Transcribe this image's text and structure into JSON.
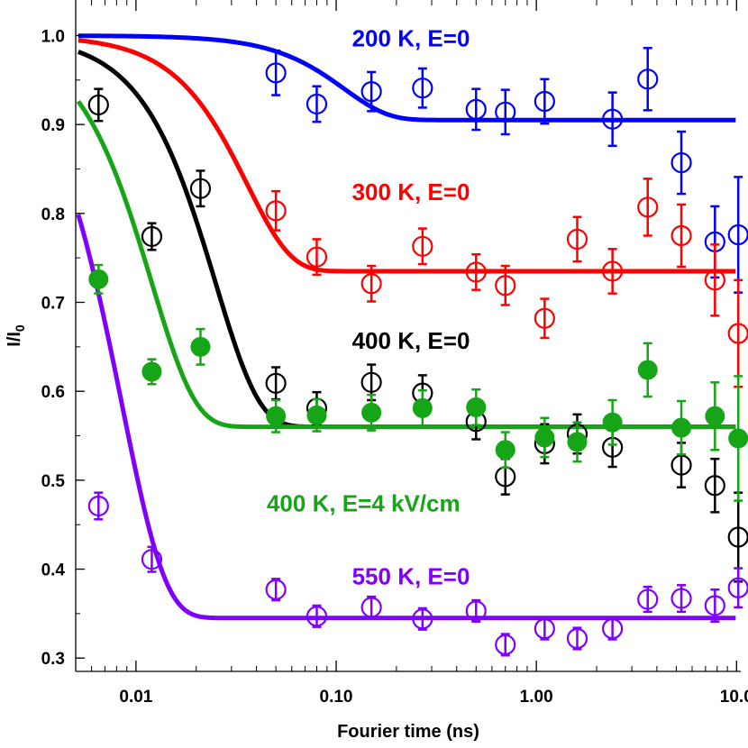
{
  "chart_data": {
    "type": "scatter",
    "xlabel": "Fourier time (ns)",
    "ylabel": "I/I",
    "ylabel_subscript": "0",
    "xscale": "log",
    "xlim": [
      0.005,
      10.5
    ],
    "ylim": [
      0.285,
      1.04
    ],
    "xticks": [
      0.01,
      0.1,
      1,
      10
    ],
    "xtick_labels": [
      "0.01",
      "0.10",
      "1.00",
      "10.0"
    ],
    "yticks": [
      0.3,
      0.4,
      0.5,
      0.6,
      0.7,
      0.8,
      0.9,
      1.0
    ],
    "ytick_labels": [
      "0.3",
      "0.4",
      "0.5",
      "0.6",
      "0.7",
      "0.8",
      "0.9",
      "1.0"
    ],
    "grid": false,
    "series": [
      {
        "name": "200 K, E=0",
        "color": "#0000ff",
        "marker": "open-circle",
        "x": [
          0.05,
          0.08,
          0.15,
          0.27,
          0.5,
          0.7,
          1.1,
          2.4,
          3.6,
          5.3,
          7.8,
          10.2
        ],
        "y": [
          0.958,
          0.923,
          0.937,
          0.941,
          0.917,
          0.914,
          0.926,
          0.906,
          0.951,
          0.857,
          0.768,
          0.776
        ],
        "yerr": [
          0.025,
          0.02,
          0.022,
          0.022,
          0.023,
          0.025,
          0.025,
          0.03,
          0.035,
          0.035,
          0.04,
          0.065
        ],
        "fit": {
          "plateau": 0.905,
          "amplitude": 0.095,
          "tau": 0.11
        }
      },
      {
        "name": "300 K, E=0",
        "color": "#ff0000",
        "marker": "open-circle",
        "x": [
          0.05,
          0.08,
          0.15,
          0.27,
          0.5,
          0.7,
          1.1,
          1.6,
          2.4,
          3.6,
          5.3,
          7.8,
          10.2
        ],
        "y": [
          0.803,
          0.751,
          0.721,
          0.763,
          0.734,
          0.719,
          0.682,
          0.771,
          0.735,
          0.807,
          0.775,
          0.725,
          0.665
        ],
        "yerr": [
          0.022,
          0.02,
          0.02,
          0.02,
          0.02,
          0.022,
          0.022,
          0.025,
          0.025,
          0.032,
          0.035,
          0.04,
          0.06
        ],
        "fit": {
          "plateau": 0.735,
          "amplitude": 0.265,
          "tau": 0.036
        }
      },
      {
        "name": "400 K, E=0",
        "color": "#000000",
        "marker": "open-circle",
        "x": [
          0.0065,
          0.012,
          0.021,
          0.05,
          0.08,
          0.15,
          0.27,
          0.5,
          0.7,
          1.1,
          1.6,
          2.4,
          5.3,
          7.8,
          10.2
        ],
        "y": [
          0.922,
          0.774,
          0.828,
          0.609,
          0.581,
          0.61,
          0.598,
          0.566,
          0.504,
          0.541,
          0.552,
          0.537,
          0.517,
          0.494,
          0.436
        ],
        "yerr": [
          0.018,
          0.015,
          0.02,
          0.018,
          0.018,
          0.02,
          0.02,
          0.02,
          0.02,
          0.022,
          0.022,
          0.022,
          0.025,
          0.03,
          0.05
        ],
        "fit": {
          "plateau": 0.56,
          "amplitude": 0.44,
          "tau": 0.025
        }
      },
      {
        "name": "400 K, E=4 kV/cm",
        "color": "#16a516",
        "marker": "filled-circle",
        "x": [
          0.0065,
          0.012,
          0.021,
          0.05,
          0.08,
          0.15,
          0.27,
          0.5,
          0.7,
          1.1,
          1.6,
          2.4,
          3.6,
          5.3,
          7.8,
          10.2
        ],
        "y": [
          0.726,
          0.622,
          0.65,
          0.572,
          0.573,
          0.576,
          0.581,
          0.582,
          0.534,
          0.548,
          0.543,
          0.565,
          0.624,
          0.559,
          0.572,
          0.547
        ],
        "yerr": [
          0.016,
          0.014,
          0.02,
          0.018,
          0.018,
          0.02,
          0.02,
          0.02,
          0.02,
          0.022,
          0.022,
          0.025,
          0.03,
          0.03,
          0.038,
          0.07
        ],
        "fit": {
          "plateau": 0.56,
          "amplitude": 0.44,
          "tau": 0.012
        }
      },
      {
        "name": "550 K, E=0",
        "color": "#8000ff",
        "marker": "open-circle",
        "x": [
          0.0065,
          0.012,
          0.05,
          0.08,
          0.15,
          0.27,
          0.5,
          0.7,
          1.1,
          1.6,
          2.4,
          3.6,
          5.3,
          7.8,
          10.2
        ],
        "y": [
          0.471,
          0.411,
          0.377,
          0.347,
          0.357,
          0.344,
          0.353,
          0.315,
          0.333,
          0.322,
          0.333,
          0.366,
          0.367,
          0.359,
          0.379
        ],
        "yerr": [
          0.015,
          0.014,
          0.012,
          0.012,
          0.012,
          0.012,
          0.012,
          0.012,
          0.012,
          0.012,
          0.012,
          0.014,
          0.015,
          0.018,
          0.022
        ],
        "fit": {
          "plateau": 0.345,
          "amplitude": 0.655,
          "tau": 0.0085
        }
      }
    ],
    "annotations": [
      {
        "text": "200 K, E=0",
        "color": "#0000ff",
        "x": 0.12,
        "y": 0.988
      },
      {
        "text": "300 K, E=0",
        "color": "#ff0000",
        "x": 0.12,
        "y": 0.815
      },
      {
        "text": "400 K, E=0",
        "color": "#000000",
        "x": 0.12,
        "y": 0.648
      },
      {
        "text": "400 K, E=4 kV/cm",
        "color": "#16a516",
        "x": 0.045,
        "y": 0.465
      },
      {
        "text": "550 K, E=0",
        "color": "#8000ff",
        "x": 0.12,
        "y": 0.383
      }
    ]
  }
}
